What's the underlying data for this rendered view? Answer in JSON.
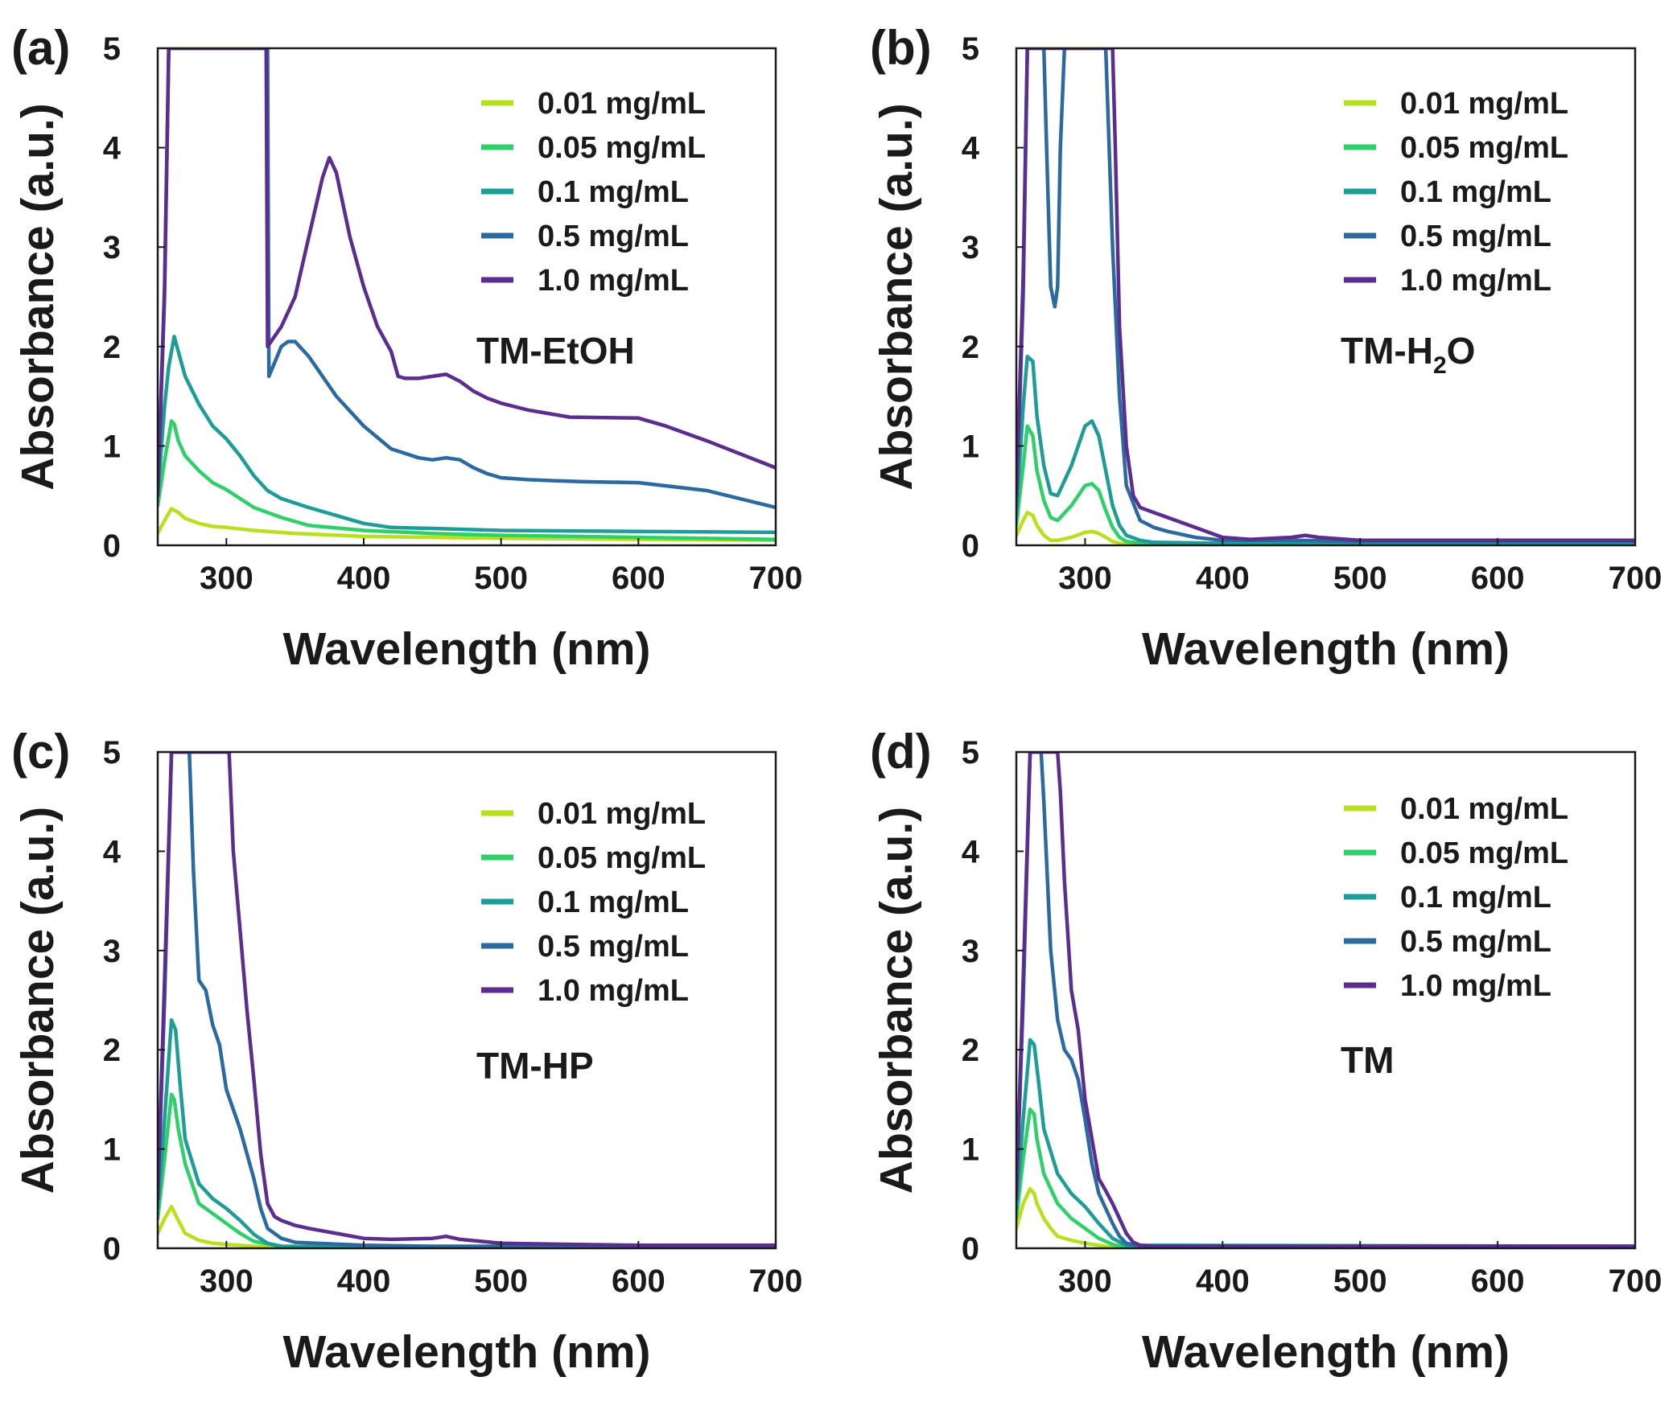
{
  "chart_data": [
    {
      "type": "line",
      "panel": "(a)",
      "sample": "TM-EtOH",
      "xlabel": "Wavelength (nm)",
      "ylabel": "Absorbance (a.u.)",
      "xlim": [
        250,
        700
      ],
      "ylim": [
        0,
        5
      ],
      "xticks": [
        300,
        400,
        500,
        600,
        700
      ],
      "yticks": [
        0,
        1,
        2,
        3,
        4,
        5
      ],
      "legend_position": "top-right",
      "series": [
        {
          "name": "0.01 mg/mL",
          "color": "#b9e01f",
          "x": [
            250,
            255,
            260,
            265,
            270,
            280,
            290,
            300,
            320,
            350,
            400,
            500,
            600,
            700
          ],
          "y": [
            0.12,
            0.25,
            0.37,
            0.33,
            0.27,
            0.22,
            0.19,
            0.18,
            0.15,
            0.12,
            0.09,
            0.07,
            0.06,
            0.05
          ]
        },
        {
          "name": "0.05 mg/mL",
          "color": "#2fcf6a",
          "x": [
            250,
            255,
            260,
            262,
            265,
            270,
            280,
            290,
            300,
            310,
            320,
            340,
            360,
            400,
            450,
            500,
            600,
            700
          ],
          "y": [
            0.4,
            0.85,
            1.25,
            1.22,
            1.05,
            0.9,
            0.75,
            0.63,
            0.56,
            0.47,
            0.38,
            0.28,
            0.2,
            0.15,
            0.12,
            0.1,
            0.08,
            0.06
          ]
        },
        {
          "name": "0.1 mg/mL",
          "color": "#1e9c97",
          "x": [
            250,
            255,
            258,
            262,
            265,
            270,
            280,
            290,
            300,
            310,
            320,
            330,
            340,
            360,
            400,
            420,
            450,
            500,
            600,
            700
          ],
          "y": [
            0.5,
            1.4,
            1.8,
            2.1,
            1.95,
            1.7,
            1.42,
            1.2,
            1.07,
            0.9,
            0.7,
            0.55,
            0.47,
            0.38,
            0.22,
            0.18,
            0.17,
            0.15,
            0.14,
            0.13
          ]
        },
        {
          "name": "0.5 mg/mL",
          "color": "#2b6aa0",
          "x": [
            250,
            255,
            258,
            262,
            270,
            280,
            290,
            300,
            320,
            330,
            331,
            340,
            345,
            350,
            360,
            370,
            380,
            400,
            420,
            440,
            450,
            460,
            470,
            480,
            490,
            500,
            520,
            540,
            560,
            600,
            650,
            700
          ],
          "y": [
            0.5,
            2.5,
            5,
            5,
            5,
            5,
            5,
            5,
            5,
            5,
            1.7,
            2,
            2.05,
            2.05,
            1.9,
            1.7,
            1.5,
            1.2,
            0.97,
            0.88,
            0.86,
            0.88,
            0.86,
            0.78,
            0.72,
            0.68,
            0.66,
            0.65,
            0.64,
            0.63,
            0.55,
            0.38
          ]
        },
        {
          "name": "1.0 mg/mL",
          "color": "#5b2d8e",
          "x": [
            250,
            255,
            258,
            262,
            270,
            280,
            290,
            300,
            310,
            320,
            328,
            329,
            330,
            340,
            350,
            360,
            370,
            375,
            380,
            390,
            400,
            410,
            420,
            425,
            430,
            440,
            450,
            460,
            470,
            480,
            490,
            500,
            520,
            550,
            600,
            620,
            650,
            700
          ],
          "y": [
            0.5,
            2.6,
            5,
            5,
            5,
            5,
            5,
            5,
            5,
            5,
            5,
            5,
            2,
            2.2,
            2.5,
            3.1,
            3.7,
            3.9,
            3.75,
            3.1,
            2.6,
            2.2,
            1.95,
            1.7,
            1.68,
            1.68,
            1.7,
            1.72,
            1.65,
            1.55,
            1.48,
            1.43,
            1.36,
            1.29,
            1.28,
            1.2,
            1.05,
            0.78
          ]
        }
      ]
    },
    {
      "type": "line",
      "panel": "(b)",
      "sample": "TM-H",
      "sample_sub": "2",
      "sample_tail": "O",
      "xlabel": "Wavelength (nm)",
      "ylabel": "Absorbance (a.u.)",
      "xlim": [
        250,
        700
      ],
      "ylim": [
        0,
        5
      ],
      "xticks": [
        300,
        400,
        500,
        600,
        700
      ],
      "yticks": [
        0,
        1,
        2,
        3,
        4,
        5
      ],
      "legend_position": "top-right",
      "series": [
        {
          "name": "0.01 mg/mL",
          "color": "#b9e01f",
          "x": [
            250,
            255,
            258,
            262,
            265,
            270,
            275,
            280,
            290,
            300,
            305,
            310,
            315,
            320,
            325,
            330,
            350,
            400,
            700
          ],
          "y": [
            0.1,
            0.25,
            0.33,
            0.3,
            0.2,
            0.1,
            0.05,
            0.05,
            0.08,
            0.13,
            0.14,
            0.12,
            0.08,
            0.04,
            0.02,
            0.01,
            0.01,
            0.01,
            0.01
          ]
        },
        {
          "name": "0.05 mg/mL",
          "color": "#2fcf6a",
          "x": [
            250,
            255,
            258,
            262,
            265,
            270,
            275,
            280,
            290,
            300,
            305,
            310,
            315,
            320,
            325,
            330,
            340,
            350,
            400,
            700
          ],
          "y": [
            0.2,
            0.8,
            1.2,
            1.1,
            0.75,
            0.45,
            0.28,
            0.25,
            0.4,
            0.6,
            0.62,
            0.55,
            0.35,
            0.18,
            0.08,
            0.04,
            0.02,
            0.01,
            0.01,
            0.01
          ]
        },
        {
          "name": "0.1 mg/mL",
          "color": "#1e9c97",
          "x": [
            250,
            255,
            258,
            262,
            265,
            270,
            275,
            280,
            290,
            300,
            305,
            310,
            315,
            320,
            325,
            330,
            340,
            350,
            400,
            700
          ],
          "y": [
            0.3,
            1.4,
            1.9,
            1.85,
            1.3,
            0.8,
            0.52,
            0.5,
            0.8,
            1.2,
            1.25,
            1.1,
            0.75,
            0.4,
            0.2,
            0.1,
            0.05,
            0.03,
            0.02,
            0.02
          ]
        },
        {
          "name": "0.5 mg/mL",
          "color": "#2b6aa0",
          "x": [
            250,
            255,
            258,
            262,
            270,
            272,
            275,
            278,
            280,
            282,
            285,
            290,
            300,
            310,
            315,
            320,
            325,
            330,
            340,
            350,
            360,
            380,
            400,
            450,
            500,
            700
          ],
          "y": [
            0.4,
            2.5,
            5,
            5,
            5,
            4,
            2.6,
            2.4,
            2.6,
            4,
            5,
            5,
            5,
            5,
            5,
            3,
            1.5,
            0.6,
            0.25,
            0.18,
            0.14,
            0.08,
            0.05,
            0.05,
            0.04,
            0.04
          ]
        },
        {
          "name": "1.0 mg/mL",
          "color": "#5b2d8e",
          "x": [
            250,
            255,
            258,
            262,
            270,
            280,
            290,
            300,
            310,
            320,
            322,
            325,
            330,
            335,
            340,
            350,
            360,
            380,
            400,
            420,
            450,
            460,
            470,
            500,
            550,
            600,
            700
          ],
          "y": [
            0.5,
            2.7,
            5,
            5,
            5,
            5,
            5,
            5,
            5,
            5,
            4,
            2.2,
            1,
            0.5,
            0.38,
            0.33,
            0.28,
            0.18,
            0.08,
            0.06,
            0.08,
            0.1,
            0.08,
            0.05,
            0.05,
            0.05,
            0.05
          ]
        }
      ]
    },
    {
      "type": "line",
      "panel": "(c)",
      "sample": "TM-HP",
      "xlabel": "Wavelength (nm)",
      "ylabel": "Absorbance (a.u.)",
      "xlim": [
        250,
        700
      ],
      "ylim": [
        0,
        5
      ],
      "xticks": [
        300,
        400,
        500,
        600,
        700
      ],
      "yticks": [
        0,
        1,
        2,
        3,
        4,
        5
      ],
      "legend_position": "top-right",
      "series": [
        {
          "name": "0.01 mg/mL",
          "color": "#b9e01f",
          "x": [
            250,
            255,
            260,
            265,
            270,
            280,
            290,
            300,
            320,
            350,
            400,
            700
          ],
          "y": [
            0.15,
            0.3,
            0.42,
            0.28,
            0.15,
            0.08,
            0.05,
            0.04,
            0.02,
            0.01,
            0.01,
            0.01
          ]
        },
        {
          "name": "0.05 mg/mL",
          "color": "#2fcf6a",
          "x": [
            250,
            255,
            260,
            262,
            265,
            270,
            280,
            290,
            300,
            310,
            320,
            340,
            400,
            700
          ],
          "y": [
            0.3,
            0.9,
            1.55,
            1.5,
            1.2,
            0.85,
            0.45,
            0.35,
            0.25,
            0.15,
            0.07,
            0.02,
            0.01,
            0.01
          ]
        },
        {
          "name": "0.1 mg/mL",
          "color": "#1e9c97",
          "x": [
            250,
            255,
            260,
            263,
            266,
            270,
            280,
            290,
            300,
            310,
            320,
            330,
            340,
            400,
            700
          ],
          "y": [
            0.4,
            1.3,
            2.3,
            2.2,
            1.7,
            1.1,
            0.65,
            0.5,
            0.4,
            0.28,
            0.14,
            0.05,
            0.02,
            0.01,
            0.01
          ]
        },
        {
          "name": "0.5 mg/mL",
          "color": "#2b6aa0",
          "x": [
            250,
            255,
            260,
            265,
            270,
            273,
            276,
            280,
            285,
            290,
            295,
            300,
            310,
            320,
            325,
            330,
            340,
            350,
            400,
            450,
            700
          ],
          "y": [
            0.5,
            2.5,
            5,
            5,
            5,
            5,
            3.8,
            2.7,
            2.6,
            2.25,
            2.05,
            1.6,
            1.2,
            0.7,
            0.4,
            0.2,
            0.1,
            0.06,
            0.03,
            0.02,
            0.02
          ]
        },
        {
          "name": "1.0 mg/mL",
          "color": "#5b2d8e",
          "x": [
            250,
            255,
            260,
            270,
            280,
            290,
            300,
            302,
            305,
            310,
            315,
            320,
            325,
            330,
            335,
            340,
            350,
            360,
            380,
            400,
            420,
            450,
            460,
            470,
            500,
            550,
            600,
            700
          ],
          "y": [
            0.5,
            2.7,
            5,
            5,
            5,
            5,
            5,
            5,
            4,
            3.2,
            2.4,
            1.7,
            0.95,
            0.45,
            0.32,
            0.28,
            0.23,
            0.2,
            0.15,
            0.1,
            0.09,
            0.1,
            0.12,
            0.09,
            0.05,
            0.04,
            0.03,
            0.03
          ]
        }
      ]
    },
    {
      "type": "line",
      "panel": "(d)",
      "sample": "TM",
      "xlabel": "Wavelength (nm)",
      "ylabel": "Absorbance (a.u.)",
      "xlim": [
        250,
        700
      ],
      "ylim": [
        0,
        5
      ],
      "xticks": [
        300,
        400,
        500,
        600,
        700
      ],
      "yticks": [
        0,
        1,
        2,
        3,
        4,
        5
      ],
      "legend_position": "top-right",
      "series": [
        {
          "name": "0.01 mg/mL",
          "color": "#b9e01f",
          "x": [
            250,
            255,
            260,
            263,
            265,
            270,
            275,
            280,
            290,
            300,
            310,
            320,
            700
          ],
          "y": [
            0.2,
            0.45,
            0.6,
            0.55,
            0.45,
            0.3,
            0.2,
            0.12,
            0.08,
            0.05,
            0.03,
            0.01,
            0.01
          ]
        },
        {
          "name": "0.05 mg/mL",
          "color": "#2fcf6a",
          "x": [
            250,
            255,
            260,
            263,
            265,
            270,
            280,
            290,
            300,
            310,
            320,
            330,
            700
          ],
          "y": [
            0.3,
            0.9,
            1.4,
            1.35,
            1.1,
            0.75,
            0.45,
            0.3,
            0.2,
            0.1,
            0.04,
            0.01,
            0.01
          ]
        },
        {
          "name": "0.1 mg/mL",
          "color": "#1e9c97",
          "x": [
            250,
            255,
            260,
            263,
            266,
            270,
            280,
            290,
            300,
            310,
            320,
            330,
            700
          ],
          "y": [
            0.4,
            1.3,
            2.1,
            2.05,
            1.7,
            1.2,
            0.75,
            0.55,
            0.42,
            0.25,
            0.1,
            0.03,
            0.02
          ]
        },
        {
          "name": "0.5 mg/mL",
          "color": "#2b6aa0",
          "x": [
            250,
            255,
            260,
            265,
            268,
            270,
            275,
            280,
            285,
            290,
            295,
            300,
            305,
            310,
            315,
            320,
            325,
            330,
            340,
            700
          ],
          "y": [
            0.5,
            2.5,
            5,
            5,
            5,
            4.5,
            3,
            2.3,
            2,
            1.9,
            1.7,
            1.3,
            0.85,
            0.55,
            0.4,
            0.25,
            0.12,
            0.05,
            0.02,
            0.02
          ]
        },
        {
          "name": "1.0 mg/mL",
          "color": "#5b2d8e",
          "x": [
            250,
            255,
            260,
            270,
            280,
            282,
            285,
            290,
            295,
            300,
            305,
            310,
            315,
            320,
            325,
            330,
            335,
            340,
            350,
            380,
            400,
            700
          ],
          "y": [
            0.5,
            2.7,
            5,
            5,
            5,
            4.6,
            3.7,
            2.6,
            2.2,
            1.5,
            1.1,
            0.7,
            0.58,
            0.45,
            0.3,
            0.15,
            0.06,
            0.03,
            0.02,
            0.02,
            0.02,
            0.02
          ]
        }
      ]
    }
  ]
}
